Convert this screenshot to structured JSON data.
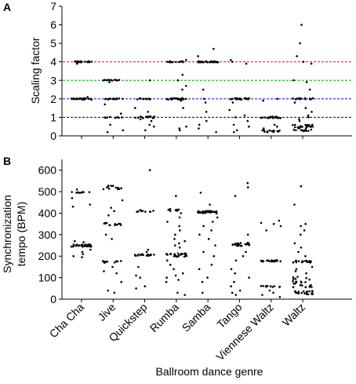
{
  "figure": {
    "xlabel": "Ballroom dance genre",
    "categories": [
      "Cha Cha",
      "Jive",
      "Quickstep",
      "Rumba",
      "Samba",
      "Tango",
      "Viennese Waltz",
      "Waltz"
    ]
  },
  "chart_data": [
    {
      "panel": "A",
      "type": "scatter",
      "title": "",
      "ylabel": "Scaling factor",
      "ylim": [
        0,
        7
      ],
      "yticks": [
        0,
        1,
        2,
        3,
        4,
        5,
        6,
        7
      ],
      "categories": [
        "Cha Cha",
        "Jive",
        "Quickstep",
        "Rumba",
        "Samba",
        "Tango",
        "Viennese Waltz",
        "Waltz"
      ],
      "reference_lines": [
        {
          "y": 1,
          "color": "#000000"
        },
        {
          "y": 2,
          "color": "#0000ff"
        },
        {
          "y": 3,
          "color": "#00a000"
        },
        {
          "y": 4,
          "color": "#ff0000"
        }
      ],
      "series": [
        {
          "category": "Cha Cha",
          "clusters": [
            {
              "y": 4,
              "count": 22,
              "spread": 0.03
            },
            {
              "y": 2,
              "count": 24,
              "spread": 0.04
            }
          ],
          "extra": [
            3.9,
            2.1,
            1.95
          ]
        },
        {
          "category": "Jive",
          "clusters": [
            {
              "y": 3,
              "count": 14,
              "spread": 0.03
            },
            {
              "y": 2,
              "count": 16,
              "spread": 0.03
            },
            {
              "y": 1,
              "count": 8,
              "spread": 0.03
            }
          ],
          "extra": [
            2.9,
            1.7,
            1.2,
            0.6,
            0.3,
            0.2
          ]
        },
        {
          "category": "Quickstep",
          "clusters": [
            {
              "y": 2,
              "count": 14,
              "spread": 0.03
            },
            {
              "y": 1,
              "count": 16,
              "spread": 0.05
            }
          ],
          "extra": [
            3.0,
            1.5,
            1.3,
            0.9,
            0.8,
            0.6,
            0.5,
            0.3
          ]
        },
        {
          "category": "Rumba",
          "clusters": [
            {
              "y": 4,
              "count": 14,
              "spread": 0.03
            },
            {
              "y": 2,
              "count": 22,
              "spread": 0.04
            }
          ],
          "extra": [
            4.1,
            3.3,
            3.0,
            2.7,
            2.5,
            1.9,
            1.5,
            0.5,
            0.4,
            0.3
          ]
        },
        {
          "category": "Samba",
          "clusters": [
            {
              "y": 4,
              "count": 30,
              "spread": 0.03
            }
          ],
          "extra": [
            4.7,
            4.3,
            2.5,
            2.0,
            1.8,
            1.3,
            0.8,
            0.6,
            0.4,
            0.2
          ]
        },
        {
          "category": "Tango",
          "clusters": [
            {
              "y": 2,
              "count": 26,
              "spread": 0.04
            }
          ],
          "extra": [
            4.1,
            4.0,
            3.9,
            1.8,
            1.4,
            1.1,
            1.0,
            0.8,
            0.6,
            0.5,
            0.3,
            0.2
          ]
        },
        {
          "category": "Viennese Waltz",
          "clusters": [
            {
              "y": 1,
              "count": 24,
              "spread": 0.04
            },
            {
              "y": 0.25,
              "count": 14,
              "spread": 0.06
            }
          ],
          "extra": [
            2.0,
            1.9,
            0.6,
            0.5,
            0.4
          ]
        },
        {
          "category": "Waltz",
          "clusters": [
            {
              "y": 2,
              "count": 14,
              "spread": 0.04
            },
            {
              "y": 0.5,
              "count": 24,
              "spread": 0.1
            },
            {
              "y": 0.3,
              "count": 10,
              "spread": 0.05
            }
          ],
          "extra": [
            6.0,
            5.0,
            4.3,
            4.0,
            3.9,
            3.0,
            2.9,
            2.5,
            1.8,
            1.5,
            1.3,
            1.1,
            1.0,
            0.9,
            0.8
          ]
        }
      ]
    },
    {
      "panel": "B",
      "type": "scatter",
      "title": "",
      "ylabel_lines": [
        "Synchronization",
        "tempo (BPM)"
      ],
      "ylim": [
        0,
        650
      ],
      "yticks": [
        0,
        100,
        200,
        300,
        400,
        500,
        600
      ],
      "categories": [
        "Cha Cha",
        "Jive",
        "Quickstep",
        "Rumba",
        "Samba",
        "Tango",
        "Viennese Waltz",
        "Waltz"
      ],
      "series": [
        {
          "category": "Cha Cha",
          "clusters": [
            {
              "y": 250,
              "count": 30,
              "spread": 6
            },
            {
              "y": 497,
              "count": 10,
              "spread": 3
            }
          ],
          "extra": [
            270,
            265,
            230,
            220,
            210,
            200,
            195,
            470,
            440,
            430,
            510
          ]
        },
        {
          "category": "Jive",
          "clusters": [
            {
              "y": 350,
              "count": 12,
              "spread": 6
            },
            {
              "y": 175,
              "count": 10,
              "spread": 5
            },
            {
              "y": 520,
              "count": 12,
              "spread": 10
            }
          ],
          "extra": [
            460,
            425,
            410,
            390,
            300,
            280,
            150,
            130,
            120,
            80,
            40,
            30
          ]
        },
        {
          "category": "Quickstep",
          "clusters": [
            {
              "y": 205,
              "count": 18,
              "spread": 4
            },
            {
              "y": 410,
              "count": 10,
              "spread": 4
            }
          ],
          "extra": [
            600,
            415,
            230,
            220,
            150,
            110,
            100,
            60,
            50
          ]
        },
        {
          "category": "Rumba",
          "clusters": [
            {
              "y": 205,
              "count": 26,
              "spread": 8
            },
            {
              "y": 415,
              "count": 8,
              "spread": 5
            }
          ],
          "extra": [
            480,
            400,
            380,
            360,
            340,
            320,
            300,
            280,
            270,
            260,
            250,
            240,
            180,
            160,
            140,
            120,
            110,
            100,
            90,
            80,
            30,
            20
          ]
        },
        {
          "category": "Samba",
          "clusters": [
            {
              "y": 405,
              "count": 38,
              "spread": 6
            }
          ],
          "extra": [
            495,
            440,
            380,
            360,
            340,
            320,
            300,
            280,
            250,
            220,
            200,
            160,
            140,
            100,
            80,
            30
          ]
        },
        {
          "category": "Tango",
          "clusters": [
            {
              "y": 255,
              "count": 26,
              "spread": 8
            }
          ],
          "extra": [
            540,
            520,
            480,
            300,
            220,
            200,
            180,
            140,
            120,
            100,
            80,
            60,
            40,
            30,
            20
          ]
        },
        {
          "category": "Viennese Waltz",
          "clusters": [
            {
              "y": 178,
              "count": 18,
              "spread": 3
            },
            {
              "y": 60,
              "count": 10,
              "spread": 4
            }
          ],
          "extra": [
            365,
            355,
            350,
            340,
            320,
            40,
            30,
            20,
            10
          ]
        },
        {
          "category": "Waltz",
          "clusters": [
            {
              "y": 175,
              "count": 18,
              "spread": 5
            },
            {
              "y": 80,
              "count": 24,
              "spread": 25
            },
            {
              "y": 30,
              "count": 20,
              "spread": 8
            }
          ],
          "extra": [
            525,
            440,
            350,
            340,
            320,
            300,
            260,
            240,
            220,
            200,
            150,
            140,
            130,
            120
          ]
        }
      ]
    }
  ]
}
